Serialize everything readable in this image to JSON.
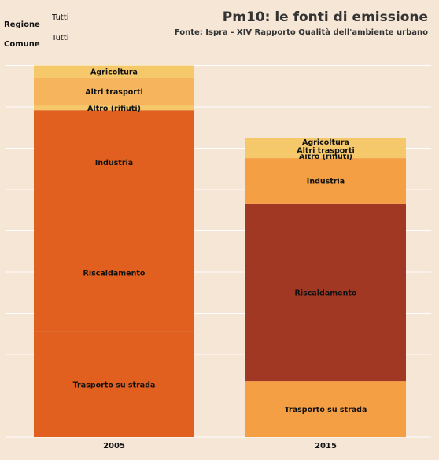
{
  "filters": {
    "regione_label": "Regione",
    "regione_value": "Tutti",
    "comune_label": "Comune",
    "comune_value": "Tutti"
  },
  "chart_data": {
    "type": "bar",
    "stacked": true,
    "normalized": false,
    "title": "Pm10: le fonti di emissione",
    "subtitle": "Fonte: Ispra - XIV Rapporto Qualità dell'ambiente urbano",
    "categories": [
      "2005",
      "2015"
    ],
    "grid": true,
    "series": [
      {
        "name": "Trasporto su strada",
        "values": [
          25.6,
          13.5
        ],
        "colors": [
          "#e1601f",
          "#f59f45"
        ]
      },
      {
        "name": "Riscaldamento",
        "values": [
          28.4,
          43.1
        ],
        "colors": [
          "#e1601f",
          "#a03824"
        ]
      },
      {
        "name": "Industria",
        "values": [
          25.2,
          11.0
        ],
        "colors": [
          "#e1601f",
          "#f59f45"
        ]
      },
      {
        "name": "Altro (rifiuti)",
        "values": [
          1.1,
          0.9
        ],
        "colors": [
          "#f5c869",
          "#f5c869"
        ]
      },
      {
        "name": "Altri trasporti",
        "values": [
          6.8,
          2.0
        ],
        "colors": [
          "#f6b55c",
          "#f5c869"
        ]
      },
      {
        "name": "Agricoltura",
        "values": [
          2.9,
          2.0
        ],
        "colors": [
          "#f5c869",
          "#f5c869"
        ]
      }
    ]
  }
}
